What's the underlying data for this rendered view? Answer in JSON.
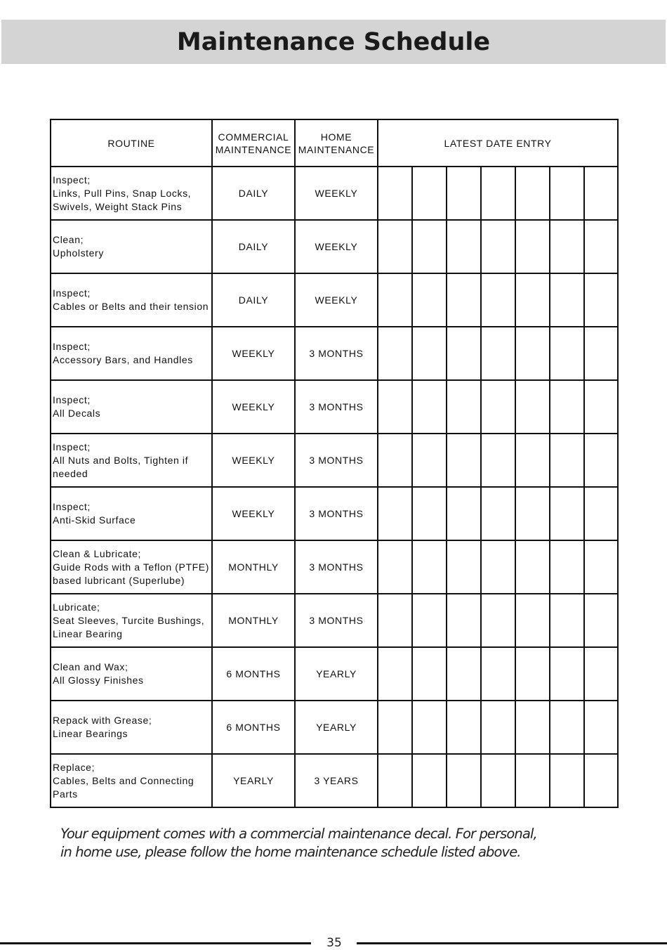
{
  "title": "Maintenance Schedule",
  "table": {
    "headers": {
      "routine": "ROUTINE",
      "commercial": [
        "COMMERCIAL",
        "MAINTENANCE"
      ],
      "home": [
        "HOME",
        "MAINTENANCE"
      ],
      "date": "LATEST DATE ENTRY"
    },
    "date_entry_columns": 7,
    "rows": [
      {
        "routine": [
          "Inspect;",
          "Links, Pull Pins, Snap Locks,",
          "Swivels, Weight Stack Pins"
        ],
        "commercial": "DAILY",
        "home": "WEEKLY"
      },
      {
        "routine": [
          "Clean;",
          "Upholstery"
        ],
        "commercial": "DAILY",
        "home": "WEEKLY"
      },
      {
        "routine": [
          "Inspect;",
          "Cables or Belts and their tension"
        ],
        "commercial": "DAILY",
        "home": "WEEKLY"
      },
      {
        "routine": [
          "Inspect;",
          "Accessory Bars, and Handles"
        ],
        "commercial": "WEEKLY",
        "home": "3 MONTHS"
      },
      {
        "routine": [
          "Inspect;",
          "All Decals"
        ],
        "commercial": "WEEKLY",
        "home": "3 MONTHS"
      },
      {
        "routine": [
          "Inspect;",
          "All Nuts and Bolts, Tighten if",
          "needed"
        ],
        "commercial": "WEEKLY",
        "home": "3 MONTHS"
      },
      {
        "routine": [
          "Inspect;",
          "Anti-Skid Surface"
        ],
        "commercial": "WEEKLY",
        "home": "3 MONTHS"
      },
      {
        "routine": [
          "Clean & Lubricate;",
          "Guide Rods with a Teflon (PTFE)",
          "based lubricant (Superlube)"
        ],
        "commercial": "MONTHLY",
        "home": "3 MONTHS"
      },
      {
        "routine": [
          "Lubricate;",
          "Seat Sleeves, Turcite Bushings,",
          "Linear Bearing"
        ],
        "commercial": "MONTHLY",
        "home": "3 MONTHS"
      },
      {
        "routine": [
          "Clean and Wax;",
          "All Glossy Finishes"
        ],
        "commercial": "6 MONTHS",
        "home": "YEARLY"
      },
      {
        "routine": [
          "Repack with Grease;",
          "Linear Bearings"
        ],
        "commercial": "6 MONTHS",
        "home": "YEARLY"
      },
      {
        "routine": [
          "Replace;",
          "Cables, Belts and Connecting",
          "Parts"
        ],
        "commercial": "YEARLY",
        "home": "3 YEARS"
      }
    ]
  },
  "note": [
    "Your equipment comes with a commercial maintenance decal. For personal,",
    "in home use, please follow the home maintenance schedule listed above."
  ],
  "page_number": "35",
  "colors": {
    "title_band": "#d4d4d4"
  }
}
